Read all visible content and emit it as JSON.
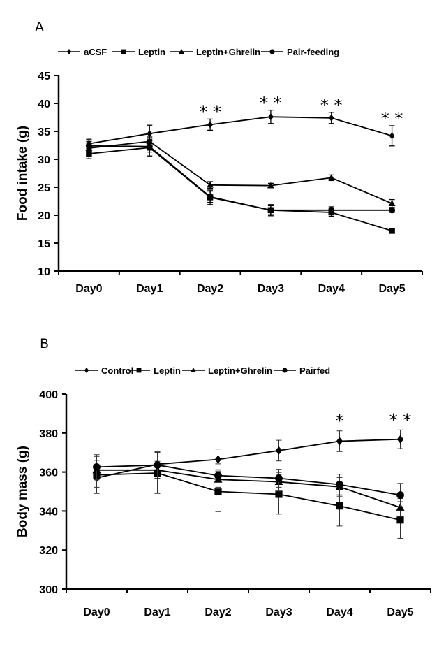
{
  "chart_data": [
    {
      "type": "line",
      "panel": "A",
      "title": "",
      "xlabel": "",
      "ylabel": "Food intake (g)",
      "categories": [
        "Day0",
        "Day1",
        "Day2",
        "Day3",
        "Day4",
        "Day5"
      ],
      "ylim": [
        10,
        45
      ],
      "yticks": [
        10,
        15,
        20,
        25,
        30,
        35,
        40,
        45
      ],
      "grid": false,
      "legend_position": "top",
      "series": [
        {
          "name": "aCSF",
          "marker": "diamond",
          "values": [
            32.8,
            34.6,
            36.2,
            37.6,
            37.4,
            34.2
          ],
          "errors": [
            0.8,
            1.5,
            1.0,
            1.2,
            1.0,
            1.8
          ]
        },
        {
          "name": "Leptin",
          "marker": "square",
          "values": [
            31.0,
            32.1,
            23.2,
            20.9,
            20.5,
            17.2
          ],
          "errors": [
            0.9,
            1.5,
            1.3,
            1.0,
            0.7,
            0.3
          ]
        },
        {
          "name": "Leptin+Ghrelin",
          "marker": "triangle",
          "values": [
            32.0,
            33.2,
            25.4,
            25.3,
            26.7,
            22.1
          ],
          "errors": [
            0.7,
            0.8,
            0.6,
            0.4,
            0.5,
            0.7
          ]
        },
        {
          "name": "Pair-feeding",
          "marker": "circle",
          "values": [
            32.4,
            32.3,
            23.3,
            20.9,
            20.9,
            20.9
          ],
          "errors": [
            0.8,
            1.0,
            1.0,
            0.8,
            0.6,
            0.4
          ]
        }
      ],
      "annotations": [
        {
          "category": "Day2",
          "text": "**"
        },
        {
          "category": "Day3",
          "text": "**"
        },
        {
          "category": "Day4",
          "text": "**"
        },
        {
          "category": "Day5",
          "text": "**"
        }
      ]
    },
    {
      "type": "line",
      "panel": "B",
      "title": "",
      "xlabel": "",
      "ylabel": "Body mass (g)",
      "categories": [
        "Day0",
        "Day1",
        "Day2",
        "Day3",
        "Day4",
        "Day5"
      ],
      "ylim": [
        300,
        400
      ],
      "yticks": [
        300,
        320,
        340,
        360,
        380,
        400
      ],
      "grid": false,
      "legend_position": "top",
      "series": [
        {
          "name": "Control",
          "marker": "diamond",
          "values": [
            357,
            364,
            366.5,
            371,
            375.8,
            376.8
          ],
          "errors": [
            4.8,
            6.0,
            5.3,
            5.3,
            5.3,
            4.8
          ]
        },
        {
          "name": "Leptin",
          "marker": "square",
          "values": [
            358.5,
            359.5,
            350,
            348.6,
            342.6,
            335.4
          ],
          "errors": [
            9.5,
            10.5,
            10.3,
            10.2,
            10.3,
            9.4
          ]
        },
        {
          "name": "Leptin+Ghrelin",
          "marker": "triangle",
          "values": [
            361,
            361,
            356.2,
            355,
            352.4,
            341.8
          ],
          "errors": [
            5.0,
            4.5,
            4.8,
            4.8,
            4.8,
            4.6
          ]
        },
        {
          "name": "Pairfed",
          "marker": "circle",
          "values": [
            362.6,
            363.6,
            358.2,
            356.8,
            353.6,
            348.2
          ],
          "errors": [
            6.3,
            6.8,
            6.0,
            4.6,
            5.3,
            6.0
          ]
        }
      ],
      "annotations": [
        {
          "category": "Day4",
          "text": "*"
        },
        {
          "category": "Day5",
          "text": "**"
        }
      ]
    }
  ],
  "panels": {
    "A": {
      "letter": "A"
    },
    "B": {
      "letter": "B"
    }
  }
}
